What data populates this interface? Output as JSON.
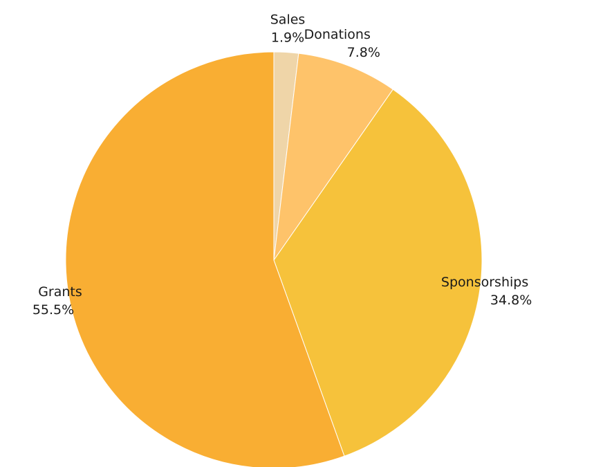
{
  "chart_data": {
    "type": "pie",
    "categories": [
      "Sales",
      "Donations",
      "Sponsorships",
      "Grants"
    ],
    "values": [
      1.9,
      7.8,
      34.8,
      55.5
    ],
    "value_labels": [
      "1.9%",
      "7.8%",
      "34.8%",
      "55.5%"
    ],
    "colors": [
      "#efd5a8",
      "#fec36a",
      "#f6c23b",
      "#f9ae33"
    ],
    "start_angle_deg": 0,
    "direction": "clockwise",
    "legend": "none"
  }
}
